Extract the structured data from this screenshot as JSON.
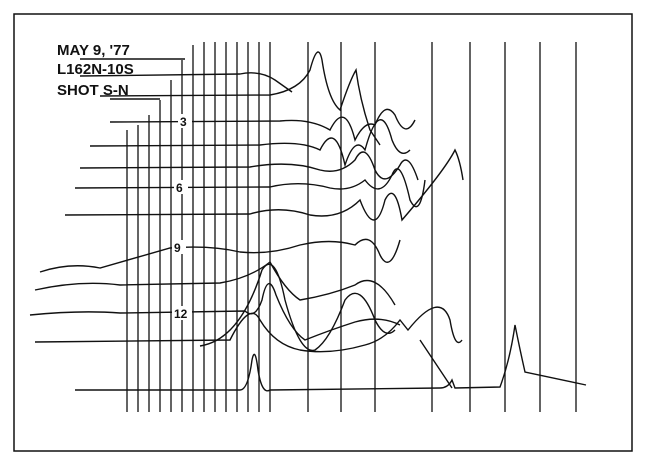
{
  "header": {
    "date": "MAY 9, '77",
    "line": "L162N-10S",
    "shot": "SHOT S-N"
  },
  "trace_labels": [
    "3",
    "6",
    "9",
    "12"
  ]
}
